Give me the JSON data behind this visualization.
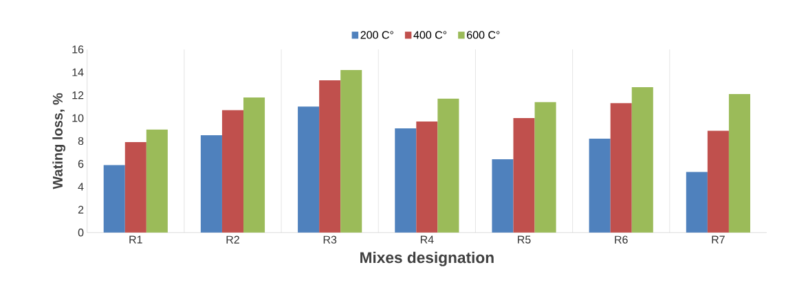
{
  "chart_data": {
    "type": "bar",
    "xlabel": "Mixes designation",
    "ylabel": "Wating loss, %",
    "categories": [
      "R1",
      "R2",
      "R3",
      "R4",
      "R5",
      "R6",
      "R7"
    ],
    "series": [
      {
        "name": "200 C°",
        "color": "#4f81bd",
        "values": [
          5.9,
          8.5,
          11.0,
          9.1,
          6.4,
          8.2,
          5.3
        ]
      },
      {
        "name": "400  C°",
        "color": "#c0504d",
        "values": [
          7.9,
          10.7,
          13.3,
          9.7,
          10.0,
          11.3,
          8.9
        ]
      },
      {
        "name": "600  C°",
        "color": "#9bbb59",
        "values": [
          9.0,
          11.8,
          14.2,
          11.7,
          11.4,
          12.7,
          12.1
        ]
      }
    ],
    "ylim": [
      0,
      16
    ],
    "yticks": [
      0,
      2,
      4,
      6,
      8,
      10,
      12,
      14,
      16
    ],
    "grid": "x",
    "legend": "top"
  }
}
